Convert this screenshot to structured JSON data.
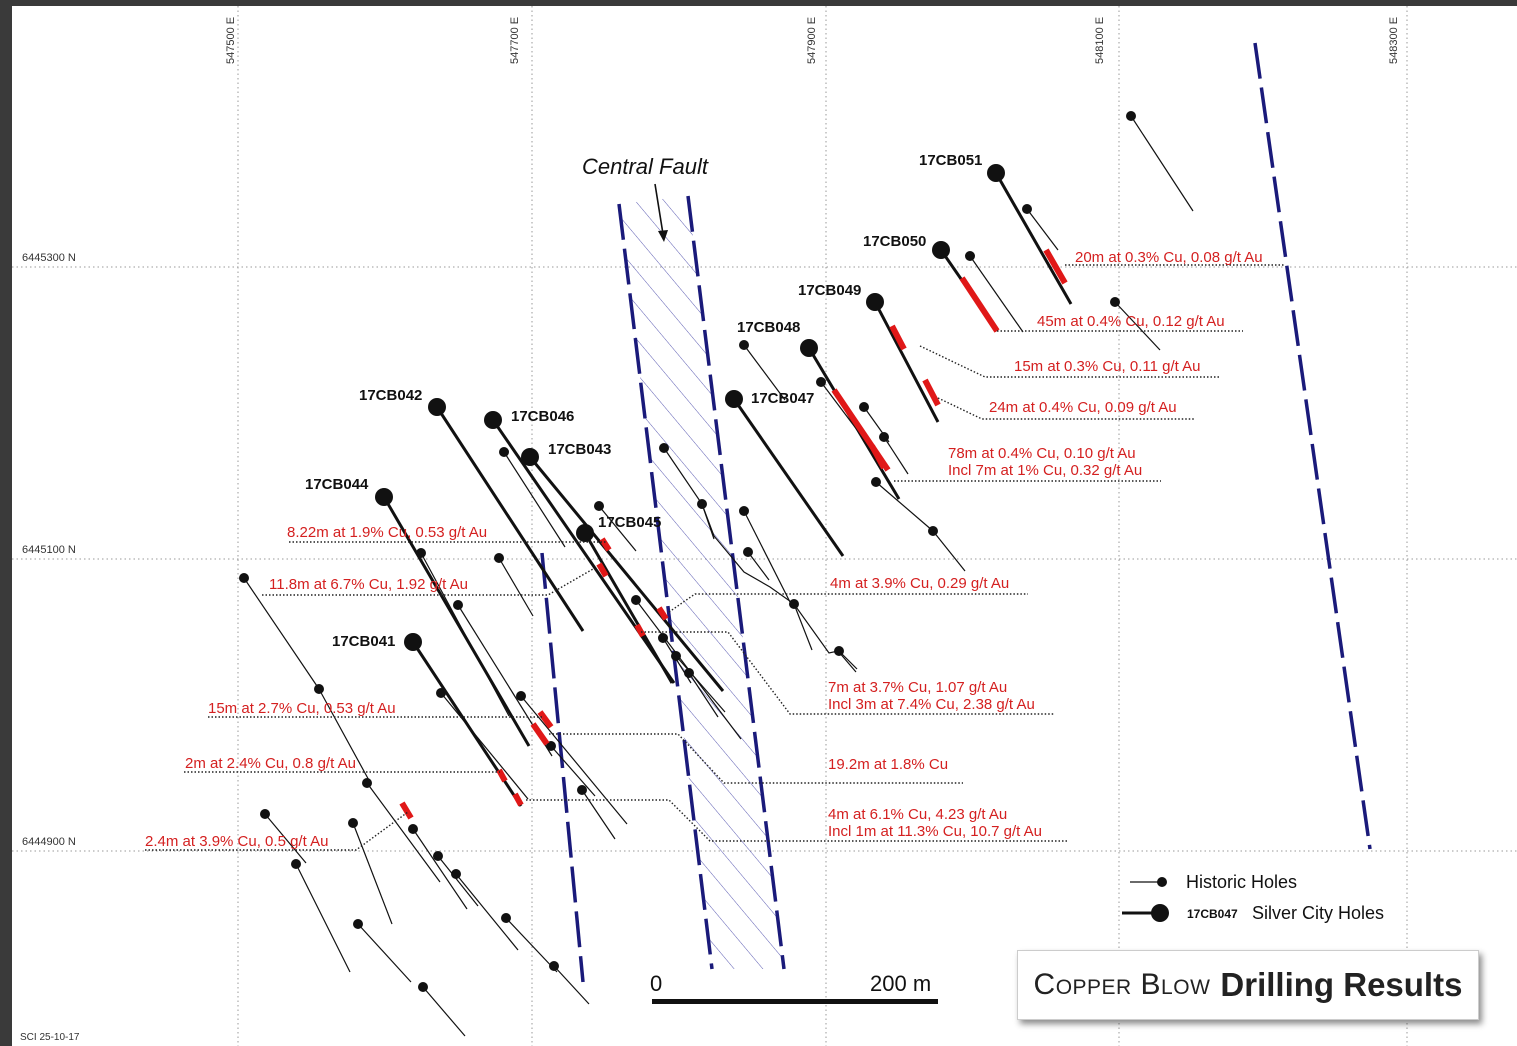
{
  "map": {
    "title_light": "Copper Blow",
    "title_bold": "Drilling Results",
    "date_stamp": "SCI 25-10-17",
    "eastings": [
      "547500 E",
      "547700 E",
      "547900 E",
      "548100 E",
      "548300 E"
    ],
    "northings": [
      "6445300 N",
      "6445100 N",
      "6444900 N"
    ],
    "fault_label": "Central Fault",
    "scale": {
      "start_label": "0",
      "end_label": "200 m"
    },
    "legend": {
      "historic_label": "Historic Holes",
      "silver_city_code": "17CB047",
      "silver_city_label": "Silver City Holes"
    },
    "hole_labels": [
      "17CB051",
      "17CB050",
      "17CB049",
      "17CB048",
      "17CB047",
      "17CB042",
      "17CB046",
      "17CB043",
      "17CB044",
      "17CB045",
      "17CB041"
    ],
    "intercepts": [
      "20m at 0.3% Cu, 0.08 g/t Au",
      "45m at 0.4% Cu, 0.12 g/t Au",
      "15m at 0.3% Cu, 0.11 g/t Au",
      "24m at 0.4% Cu, 0.09 g/t Au",
      "78m  at 0.4% Cu, 0.10 g/t Au",
      "Incl 7m at 1% Cu, 0.32 g/t Au",
      "8.22m at 1.9% Cu, 0.53 g/t Au",
      "11.8m at 6.7% Cu, 1.92 g/t Au",
      "4m at 3.9% Cu, 0.29 g/t Au",
      "7m  at 3.7% Cu, 1.07 g/t Au",
      "Incl 3m at 7.4% Cu, 2.38 g/t Au",
      "15m at 2.7% Cu, 0.53 g/t Au",
      "19.2m at 1.8% Cu",
      "2m at 2.4% Cu, 0.8 g/t Au",
      "4m  at 6.1% Cu, 4.23 g/t Au",
      "Incl 1m at 11.3% Cu, 10.7 g/t Au",
      "2.4m at 3.9% Cu, 0.5 g/t Au"
    ],
    "colors": {
      "intercept": "#d42020",
      "fault": "#1a1a7a",
      "background": "#ffffff"
    }
  }
}
